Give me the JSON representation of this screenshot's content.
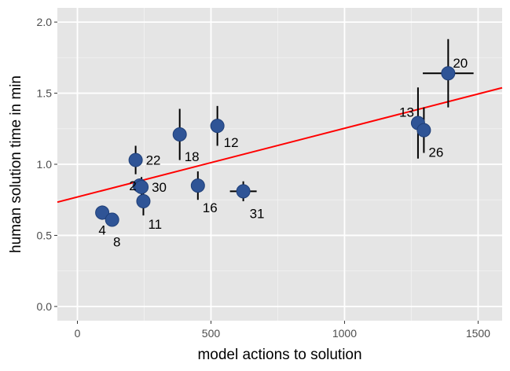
{
  "chart_data": {
    "type": "scatter",
    "title": "",
    "xlabel": "model actions to solution",
    "ylabel": "human solution time in min",
    "xlim": [
      -75,
      1590
    ],
    "ylim": [
      -0.1,
      2.1
    ],
    "x_ticks": [
      0,
      500,
      1000,
      1500
    ],
    "x_tick_labels": [
      "0",
      "500",
      "1000",
      "1500"
    ],
    "y_ticks": [
      0.0,
      0.5,
      1.0,
      1.5,
      2.0
    ],
    "y_tick_labels": [
      "0.0",
      "0.5",
      "1.0",
      "1.5",
      "2.0"
    ],
    "grid": true,
    "legend": "none",
    "background_color": "#e5e5e5",
    "point_color": "#2f5496",
    "errorbar_color": "#000000",
    "fit_line_color": "#ff0000",
    "fit_line": {
      "intercept": 0.77,
      "slope": 0.000483
    },
    "points": [
      {
        "label": "4",
        "x": 93,
        "y": 0.66,
        "x_err": 0,
        "y_err": 0.05
      },
      {
        "label": "8",
        "x": 130,
        "y": 0.61,
        "x_err": 0,
        "y_err": 0.03
      },
      {
        "label": "22",
        "x": 218,
        "y": 1.03,
        "x_err": 0,
        "y_err": 0.1
      },
      {
        "label": "2",
        "x": 233,
        "y": 0.85,
        "x_err": 0,
        "y_err": 0.05
      },
      {
        "label": "30",
        "x": 240,
        "y": 0.84,
        "x_err": 0,
        "y_err": 0.07
      },
      {
        "label": "11",
        "x": 247,
        "y": 0.74,
        "x_err": 0,
        "y_err": 0.1
      },
      {
        "label": "18",
        "x": 383,
        "y": 1.21,
        "x_err": 0,
        "y_err": 0.18
      },
      {
        "label": "16",
        "x": 451,
        "y": 0.85,
        "x_err": 0,
        "y_err": 0.1
      },
      {
        "label": "12",
        "x": 524,
        "y": 1.27,
        "x_err": 0,
        "y_err": 0.14
      },
      {
        "label": "31",
        "x": 621,
        "y": 0.81,
        "x_err": 50,
        "y_err": 0.07
      },
      {
        "label": "13",
        "x": 1275,
        "y": 1.29,
        "x_err": 0,
        "y_err": 0.25
      },
      {
        "label": "26",
        "x": 1297,
        "y": 1.24,
        "x_err": 0,
        "y_err": 0.16
      },
      {
        "label": "20",
        "x": 1388,
        "y": 1.64,
        "x_err": 95,
        "y_err": 0.24
      }
    ]
  }
}
